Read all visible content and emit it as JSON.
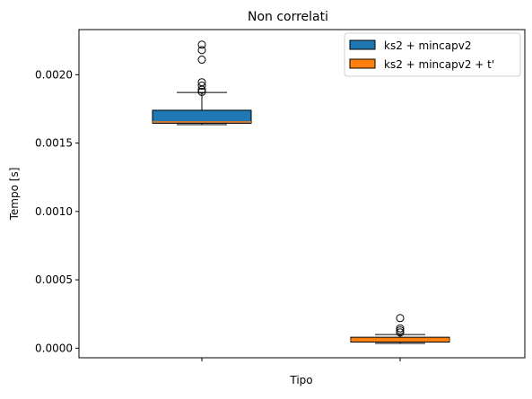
{
  "chart_data": {
    "type": "boxplot",
    "title": "Non correlati",
    "xlabel": "Tipo",
    "ylabel": "Tempo [s]",
    "ylim": [
      -7e-05,
      0.00233
    ],
    "y_ticks": [
      "0.0000",
      "0.0005",
      "0.0010",
      "0.0015",
      "0.0020"
    ],
    "y_tick_values": [
      0.0,
      0.0005,
      0.001,
      0.0015,
      0.002
    ],
    "categories": [
      "",
      ""
    ],
    "grid": false,
    "legend_position": "upper right",
    "series": [
      {
        "name": "ks2 + mincapv2",
        "color": "#1f77b4",
        "whisker_low": 0.001635,
        "q1": 0.001645,
        "median": 0.001655,
        "q3": 0.00174,
        "whisker_high": 0.00187,
        "outliers": [
          0.001875,
          0.00189,
          0.00192,
          0.001945,
          0.00211,
          0.00218,
          0.00222
        ]
      },
      {
        "name": "ks2 + mincapv2 + t'",
        "color": "#ff7f0e",
        "whisker_low": 3.5e-05,
        "q1": 4.5e-05,
        "median": 6e-05,
        "q3": 8e-05,
        "whisker_high": 0.0001,
        "outliers": [
          0.000115,
          0.00013,
          0.000145,
          0.00022
        ]
      }
    ]
  }
}
